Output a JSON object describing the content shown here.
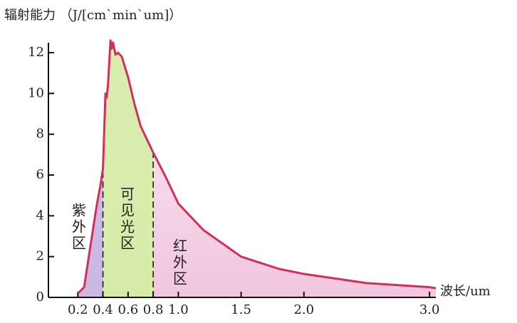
{
  "chart_data": {
    "type": "line",
    "title": "辐射能力 （J/[cm`min`um]）",
    "x_label": "波长/um",
    "x": [
      0.2,
      0.25,
      0.3,
      0.35,
      0.38,
      0.4,
      0.42,
      0.43,
      0.44,
      0.46,
      0.47,
      0.48,
      0.5,
      0.52,
      0.55,
      0.6,
      0.65,
      0.7,
      0.8,
      0.9,
      1.0,
      1.2,
      1.5,
      1.8,
      2.0,
      2.5,
      3.0,
      3.05
    ],
    "series": [
      {
        "color": "#d0305a",
        "values": [
          0.2,
          0.5,
          2.5,
          4.5,
          5.5,
          6.3,
          10.0,
          9.8,
          10.4,
          12.6,
          12.2,
          12.5,
          11.9,
          12.0,
          11.8,
          10.8,
          9.5,
          8.4,
          7.1,
          5.9,
          4.6,
          3.3,
          2.0,
          1.4,
          1.15,
          0.7,
          0.5,
          0.45
        ]
      }
    ],
    "regions": [
      {
        "name": "紫外区",
        "start": 0.2,
        "end": 0.4,
        "color": "#c9b8e2"
      },
      {
        "name": "可见光区",
        "start": 0.4,
        "end": 0.8,
        "color": "#d6eba8"
      },
      {
        "name": "红外区",
        "start": 0.8,
        "end": 3.05,
        "color": "#f1c6df"
      }
    ],
    "xlim": [
      0,
      3.05
    ],
    "ylim": [
      0,
      12
    ],
    "xticks": [
      0.2,
      0.4,
      0.6,
      0.8,
      {
        "value": 1,
        "label": "1.0"
      },
      1.5,
      {
        "value": 2,
        "label": "2.0"
      },
      {
        "value": 3,
        "label": "3.0"
      }
    ],
    "yticks": [
      0,
      2,
      4,
      6,
      8,
      10,
      12
    ]
  }
}
